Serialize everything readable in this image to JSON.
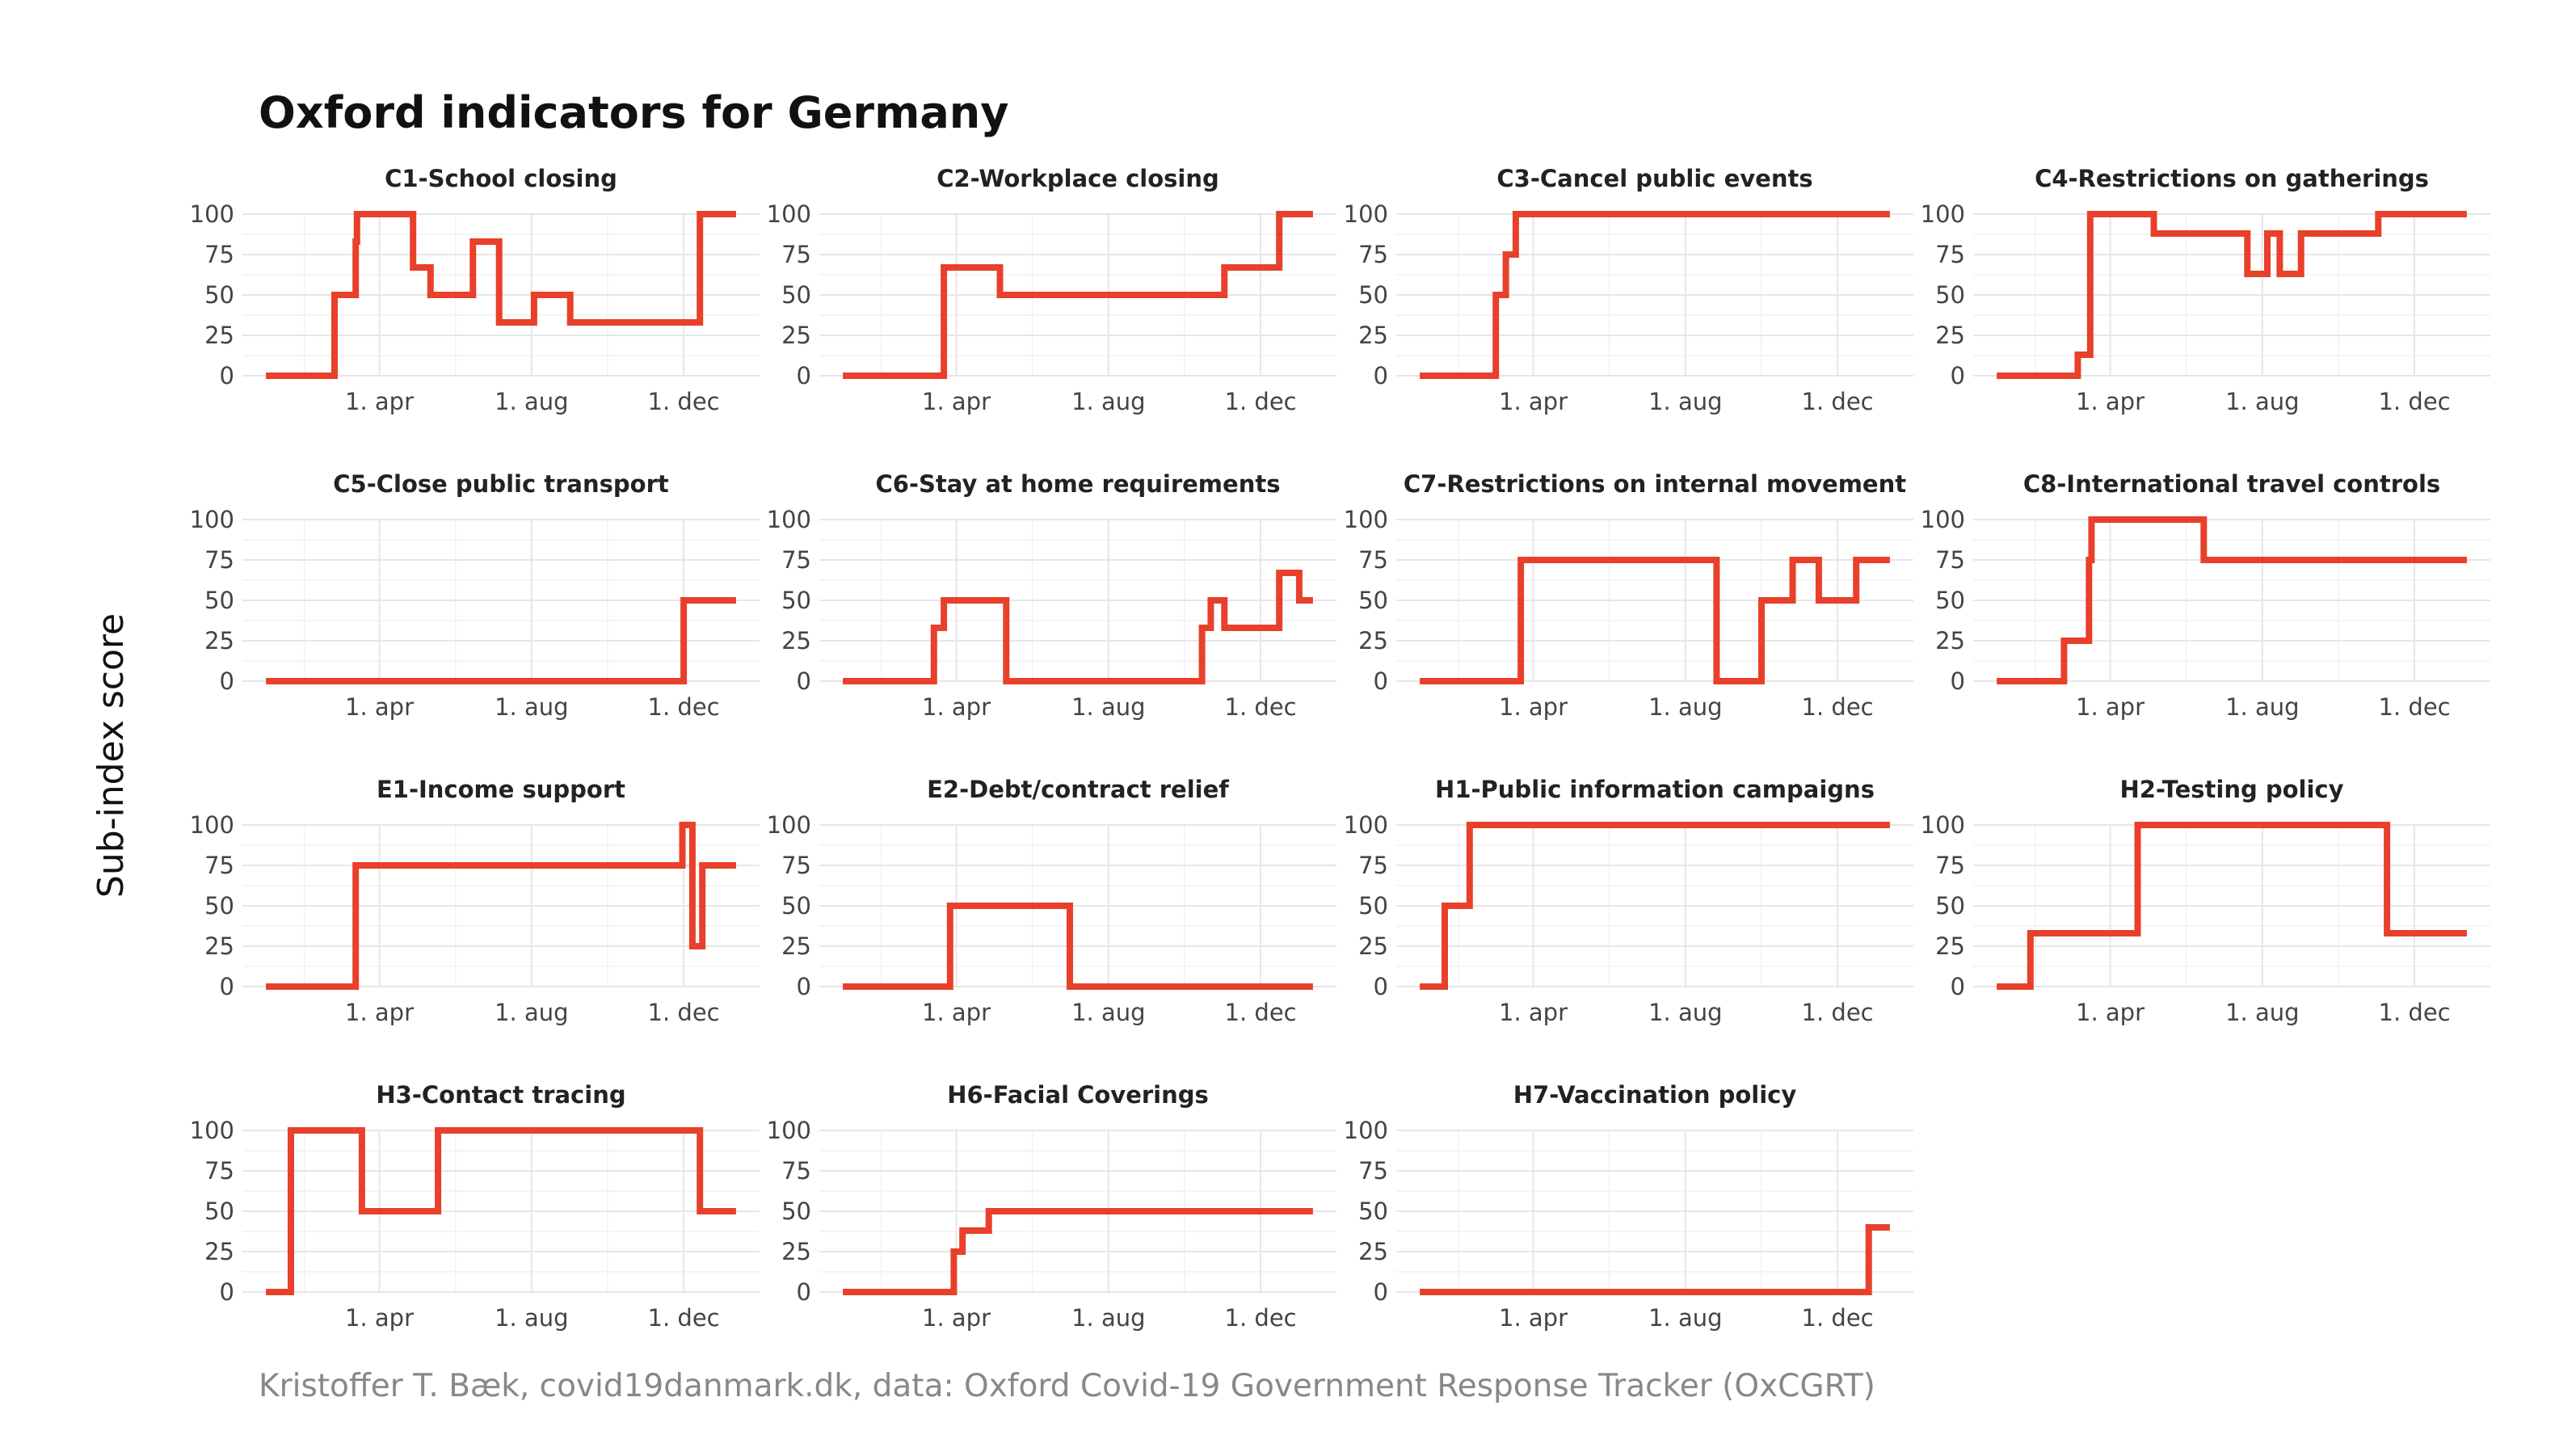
{
  "title": "Oxford indicators for Germany",
  "ylabel": "Sub-index score",
  "caption": "Kristoffer T. Bæk, covid19danmark.dk, data: Oxford Covid-19 Government Response Tracker (OxCGRT)",
  "colors": {
    "series": "#e8402a",
    "grid": "#e6e6e6"
  },
  "chart_data": {
    "type": "line",
    "layout": "facet grid 4 columns",
    "shared_axes": {
      "x_ticks": [
        "1. apr",
        "1. aug",
        "1. dec"
      ],
      "x_tick_dates": [
        "2020-04-01",
        "2020-08-01",
        "2020-12-01"
      ],
      "xlim": [
        "2020-01-01",
        "2021-01-12"
      ],
      "y_ticks": [
        0,
        25,
        50,
        75,
        100
      ],
      "ylim": [
        0,
        100
      ],
      "grid": true
    },
    "panels": [
      {
        "title": "C1-School closing",
        "steps": [
          [
            "2020-01-01",
            0
          ],
          [
            "2020-02-25",
            50
          ],
          [
            "2020-03-13",
            83
          ],
          [
            "2020-03-14",
            100
          ],
          [
            "2020-04-28",
            67
          ],
          [
            "2020-05-12",
            50
          ],
          [
            "2020-06-15",
            83
          ],
          [
            "2020-07-06",
            33
          ],
          [
            "2020-08-03",
            50
          ],
          [
            "2020-09-01",
            33
          ],
          [
            "2020-12-14",
            100
          ],
          [
            "2021-01-12",
            100
          ]
        ]
      },
      {
        "title": "C2-Workplace closing",
        "steps": [
          [
            "2020-01-01",
            0
          ],
          [
            "2020-03-22",
            67
          ],
          [
            "2020-05-06",
            50
          ],
          [
            "2020-11-02",
            67
          ],
          [
            "2020-12-16",
            100
          ],
          [
            "2021-01-12",
            100
          ]
        ]
      },
      {
        "title": "C3-Cancel public events",
        "steps": [
          [
            "2020-01-01",
            0
          ],
          [
            "2020-03-02",
            50
          ],
          [
            "2020-03-10",
            75
          ],
          [
            "2020-03-18",
            100
          ],
          [
            "2021-01-12",
            100
          ]
        ]
      },
      {
        "title": "C4-Restrictions on gatherings",
        "steps": [
          [
            "2020-01-01",
            0
          ],
          [
            "2020-03-06",
            13
          ],
          [
            "2020-03-16",
            100
          ],
          [
            "2020-05-06",
            88
          ],
          [
            "2020-07-20",
            63
          ],
          [
            "2020-08-05",
            88
          ],
          [
            "2020-08-15",
            63
          ],
          [
            "2020-09-01",
            88
          ],
          [
            "2020-11-02",
            100
          ],
          [
            "2021-01-12",
            100
          ]
        ]
      },
      {
        "title": "C5-Close public transport",
        "steps": [
          [
            "2020-01-01",
            0
          ],
          [
            "2020-12-01",
            50
          ],
          [
            "2021-01-12",
            50
          ]
        ]
      },
      {
        "title": "C6-Stay at home requirements",
        "steps": [
          [
            "2020-01-01",
            0
          ],
          [
            "2020-03-14",
            33
          ],
          [
            "2020-03-22",
            50
          ],
          [
            "2020-05-11",
            0
          ],
          [
            "2020-10-15",
            33
          ],
          [
            "2020-10-22",
            50
          ],
          [
            "2020-11-02",
            33
          ],
          [
            "2020-12-16",
            67
          ],
          [
            "2021-01-01",
            50
          ],
          [
            "2021-01-12",
            50
          ]
        ]
      },
      {
        "title": "C7-Restrictions on internal movement",
        "steps": [
          [
            "2020-01-01",
            0
          ],
          [
            "2020-03-22",
            75
          ],
          [
            "2020-08-26",
            0
          ],
          [
            "2020-10-01",
            50
          ],
          [
            "2020-10-26",
            75
          ],
          [
            "2020-11-16",
            50
          ],
          [
            "2020-12-16",
            75
          ],
          [
            "2021-01-12",
            75
          ]
        ]
      },
      {
        "title": "C8-International travel controls",
        "steps": [
          [
            "2020-01-01",
            0
          ],
          [
            "2020-02-24",
            25
          ],
          [
            "2020-03-15",
            75
          ],
          [
            "2020-03-17",
            100
          ],
          [
            "2020-06-15",
            75
          ],
          [
            "2021-01-12",
            75
          ]
        ]
      },
      {
        "title": "E1-Income support",
        "steps": [
          [
            "2020-01-01",
            0
          ],
          [
            "2020-03-13",
            75
          ],
          [
            "2020-11-30",
            100
          ],
          [
            "2020-12-08",
            25
          ],
          [
            "2020-12-16",
            75
          ],
          [
            "2021-01-12",
            75
          ]
        ]
      },
      {
        "title": "E2-Debt/contract relief",
        "steps": [
          [
            "2020-01-01",
            0
          ],
          [
            "2020-03-27",
            50
          ],
          [
            "2020-07-01",
            0
          ],
          [
            "2021-01-12",
            0
          ]
        ]
      },
      {
        "title": "H1-Public information campaigns",
        "steps": [
          [
            "2020-01-01",
            0
          ],
          [
            "2020-01-21",
            50
          ],
          [
            "2020-02-10",
            100
          ],
          [
            "2021-01-12",
            100
          ]
        ]
      },
      {
        "title": "H2-Testing policy",
        "steps": [
          [
            "2020-01-01",
            0
          ],
          [
            "2020-01-28",
            33
          ],
          [
            "2020-04-23",
            100
          ],
          [
            "2020-11-09",
            33
          ],
          [
            "2021-01-12",
            33
          ]
        ]
      },
      {
        "title": "H3-Contact tracing",
        "steps": [
          [
            "2020-01-01",
            0
          ],
          [
            "2020-01-21",
            100
          ],
          [
            "2020-03-18",
            50
          ],
          [
            "2020-05-18",
            100
          ],
          [
            "2020-12-14",
            50
          ],
          [
            "2021-01-12",
            50
          ]
        ]
      },
      {
        "title": "H6-Facial Coverings",
        "steps": [
          [
            "2020-01-01",
            0
          ],
          [
            "2020-03-30",
            25
          ],
          [
            "2020-04-06",
            38
          ],
          [
            "2020-04-27",
            50
          ],
          [
            "2021-01-12",
            50
          ]
        ]
      },
      {
        "title": "H7-Vaccination policy",
        "steps": [
          [
            "2020-01-01",
            0
          ],
          [
            "2020-12-26",
            40
          ],
          [
            "2021-01-12",
            40
          ]
        ]
      }
    ]
  }
}
